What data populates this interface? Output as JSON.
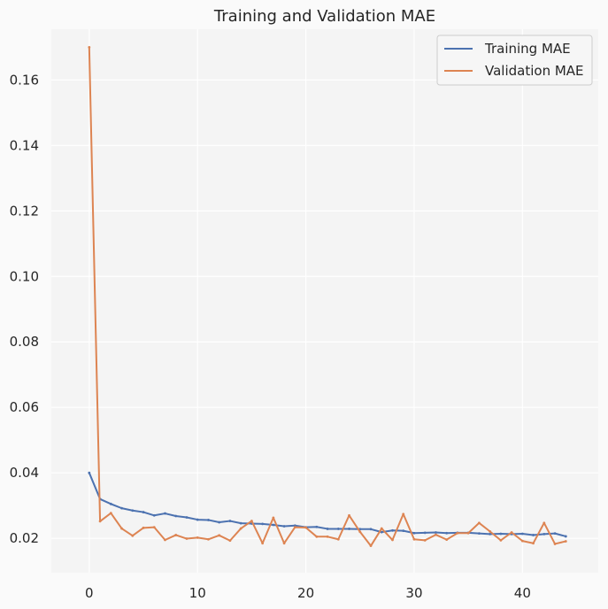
{
  "chart_data": {
    "type": "line",
    "title": "Training and Validation MAE",
    "xlabel": "",
    "ylabel": "",
    "xlim": [
      -3.5,
      47.0
    ],
    "ylim": [
      0.0095,
      0.1755
    ],
    "xticks": [
      0,
      10,
      20,
      30,
      40
    ],
    "yticks": [
      0.02,
      0.04,
      0.06,
      0.08,
      0.1,
      0.12,
      0.14,
      0.16
    ],
    "xtick_labels": [
      "0",
      "10",
      "20",
      "30",
      "40"
    ],
    "ytick_labels": [
      "0.02",
      "0.04",
      "0.06",
      "0.08",
      "0.10",
      "0.12",
      "0.14",
      "0.16"
    ],
    "grid": true,
    "legend_position": "top-right",
    "x": [
      0,
      1,
      2,
      3,
      4,
      5,
      6,
      7,
      8,
      9,
      10,
      11,
      12,
      13,
      14,
      15,
      16,
      17,
      18,
      19,
      20,
      21,
      22,
      23,
      24,
      25,
      26,
      27,
      28,
      29,
      30,
      31,
      32,
      33,
      34,
      35,
      36,
      37,
      38,
      39,
      40,
      41,
      42,
      43,
      44
    ],
    "series": [
      {
        "name": "Training MAE",
        "color": "#4c72b0",
        "values": [
          0.04,
          0.032,
          0.0305,
          0.0292,
          0.0285,
          0.028,
          0.027,
          0.0276,
          0.0268,
          0.0264,
          0.0257,
          0.0256,
          0.0249,
          0.0253,
          0.0246,
          0.0245,
          0.0244,
          0.0241,
          0.0237,
          0.0239,
          0.0234,
          0.0235,
          0.0229,
          0.0229,
          0.0229,
          0.0228,
          0.0228,
          0.0219,
          0.0224,
          0.0223,
          0.0216,
          0.0217,
          0.0218,
          0.0216,
          0.0217,
          0.0217,
          0.0215,
          0.0213,
          0.0214,
          0.0213,
          0.0214,
          0.021,
          0.0213,
          0.0215,
          0.0206
        ]
      },
      {
        "name": "Validation MAE",
        "color": "#dd8452",
        "values": [
          0.17,
          0.0252,
          0.0277,
          0.023,
          0.0208,
          0.0232,
          0.0234,
          0.0195,
          0.021,
          0.0199,
          0.0202,
          0.0197,
          0.0209,
          0.0193,
          0.023,
          0.0253,
          0.0185,
          0.0263,
          0.0185,
          0.0234,
          0.0233,
          0.0205,
          0.0205,
          0.0197,
          0.027,
          0.022,
          0.0177,
          0.023,
          0.0195,
          0.0274,
          0.0197,
          0.0194,
          0.0211,
          0.0196,
          0.0216,
          0.0216,
          0.0247,
          0.0221,
          0.0194,
          0.0218,
          0.0192,
          0.0185,
          0.0247,
          0.0183,
          0.0191
        ]
      }
    ]
  }
}
